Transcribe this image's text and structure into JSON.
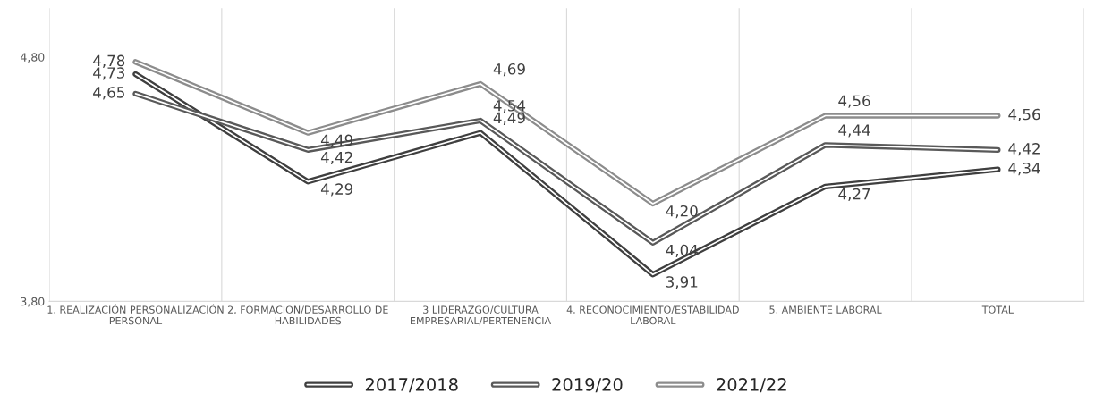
{
  "chart_data": {
    "type": "line",
    "categories": [
      "1. REALIZACIÓN PERSONALIZACIÓN\nPERSONAL",
      "2, FORMACION/DESARROLLO DE\nHABILIDADES",
      "3 LIDERAZGO/CULTURA\nEMPRESARIAL/PERTENENCIA",
      "4. RECONOCIMIENTO/ESTABILIDAD\nLABORAL",
      "5. AMBIENTE LABORAL",
      "TOTAL"
    ],
    "series": [
      {
        "name": "2017/2018",
        "color": "#3f3f3f",
        "values": [
          4.73,
          4.29,
          4.49,
          3.91,
          4.27,
          4.34
        ],
        "value_labels": [
          "4,73",
          "4,29",
          "4,49",
          "3,91",
          "4,27",
          "4,34"
        ]
      },
      {
        "name": "2019/20",
        "color": "#595959",
        "values": [
          4.65,
          4.42,
          4.54,
          4.04,
          4.44,
          4.42
        ],
        "value_labels": [
          "4,65",
          "4,42",
          "4,54",
          "4,04",
          "4,44",
          "4,42"
        ]
      },
      {
        "name": "2021/22",
        "color": "#8c8c8c",
        "values": [
          4.78,
          4.49,
          4.69,
          4.2,
          4.56,
          4.56
        ],
        "value_labels": [
          "4,78",
          "4,49",
          "4,69",
          "4,20",
          "4,56",
          "4,56"
        ]
      }
    ],
    "ylim": [
      3.8,
      5.0
    ],
    "yticks": [
      {
        "value": 3.8,
        "label": "3,80"
      },
      {
        "value": 4.8,
        "label": "4,80"
      }
    ],
    "grid": "x",
    "legend": "bottom",
    "marker": "none",
    "line_style": "solid"
  }
}
